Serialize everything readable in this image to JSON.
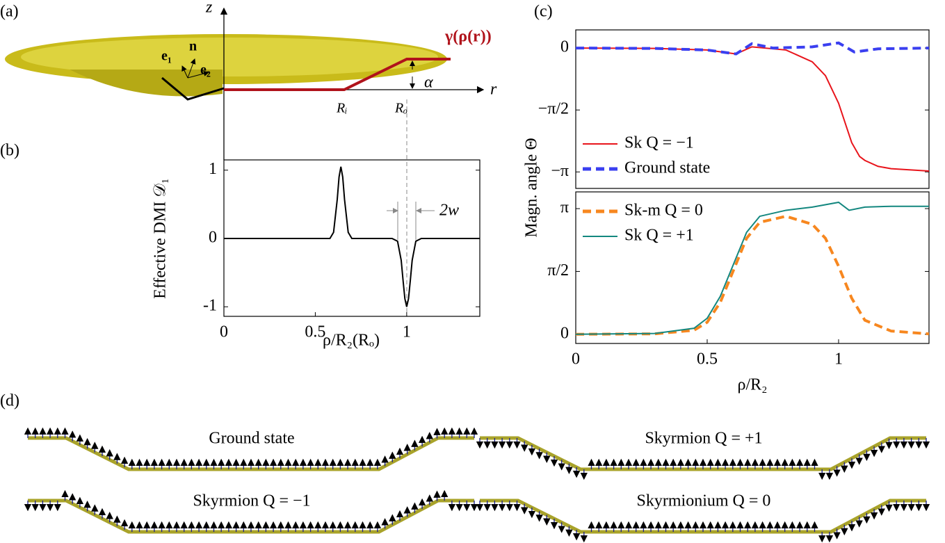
{
  "panel_labels": [
    "(a)",
    "(b)",
    "(c)",
    "(d)"
  ],
  "diagram": {
    "z_axis": "z",
    "r_axis": "r",
    "curve": "γ(ρ(r))",
    "inner_radius": "Rᵢ",
    "outer_radius": "Rₒ",
    "angle": "α",
    "e1": "e₁",
    "n": "n",
    "e2": "e₂"
  },
  "chart_data": [
    {
      "type": "line",
      "ylabel": "Effective DMI 𝒟₁",
      "xlabel": "ρ/R₂(Rₒ)",
      "annotation": "2w",
      "color": "#000000",
      "x": [
        0,
        0.55,
        0.58,
        0.6,
        0.62,
        0.63,
        0.64,
        0.65,
        0.66,
        0.68,
        0.7,
        0.92,
        0.95,
        0.97,
        0.98,
        0.99,
        1.0,
        1.01,
        1.02,
        1.03,
        1.05,
        1.08,
        1.4
      ],
      "values": [
        0,
        0,
        0,
        0.09,
        0.57,
        0.9,
        1.05,
        0.9,
        0.57,
        0.09,
        0,
        0,
        -0.04,
        -0.32,
        -0.61,
        -0.88,
        -1,
        -0.88,
        -0.61,
        -0.32,
        -0.04,
        0,
        0
      ],
      "xlim": [
        0,
        1.4
      ],
      "ylim": [
        -1.14,
        1.15
      ],
      "xticks": [
        0,
        0.5,
        1
      ],
      "yticks": [
        -1,
        0,
        1
      ]
    },
    {
      "type": "line",
      "ylabel": "Magn. angle Θ",
      "legend": "lower left",
      "series": [
        {
          "name": "Sk Q = −1",
          "color": "#e8141b",
          "dash": false,
          "x": [
            0,
            0.3,
            0.5,
            0.61,
            0.67,
            0.8,
            0.9,
            0.95,
            1.0,
            1.03,
            1.05,
            1.08,
            1.1,
            1.15,
            1.2,
            1.344
          ],
          "values": [
            0,
            -0.01,
            -0.05,
            -0.15,
            0.03,
            -0.05,
            -0.35,
            -0.7,
            -1.4,
            -2.0,
            -2.4,
            -2.75,
            -2.85,
            -3.0,
            -3.06,
            -3.12
          ]
        },
        {
          "name": "Ground state",
          "color": "#3a3ff0",
          "dash": true,
          "x": [
            0,
            0.3,
            0.5,
            0.61,
            0.67,
            0.75,
            0.9,
            1.0,
            1.06,
            1.15,
            1.344
          ],
          "values": [
            0,
            -0.01,
            -0.05,
            -0.15,
            0.11,
            0,
            0.03,
            0.13,
            -0.1,
            -0.02,
            0
          ]
        }
      ],
      "xlim": [
        0,
        1.344
      ],
      "ylim": [
        -3.56,
        0.46
      ],
      "yticks": [
        {
          "value": -3.1416,
          "label": "−π"
        },
        {
          "value": -1.5708,
          "label": "−π/2"
        },
        0
      ]
    },
    {
      "type": "line",
      "xlabel": "ρ/R₂",
      "legend": "upper left",
      "series": [
        {
          "name": "Sk-m Q = 0",
          "color": "#f7871f",
          "dash": true,
          "x": [
            0,
            0.3,
            0.45,
            0.5,
            0.55,
            0.6,
            0.65,
            0.7,
            0.8,
            0.9,
            0.95,
            1.0,
            1.05,
            1.1,
            1.2,
            1.344
          ],
          "values": [
            0,
            0.01,
            0.1,
            0.3,
            0.8,
            1.6,
            2.4,
            2.8,
            2.95,
            2.75,
            2.4,
            1.7,
            0.9,
            0.35,
            0.08,
            0.01
          ]
        },
        {
          "name": "Sk Q = +1",
          "color": "#13877f",
          "dash": false,
          "x": [
            0,
            0.3,
            0.45,
            0.5,
            0.55,
            0.6,
            0.65,
            0.7,
            0.8,
            0.9,
            1.0,
            1.04,
            1.1,
            1.2,
            1.344
          ],
          "values": [
            0,
            0.02,
            0.15,
            0.4,
            0.95,
            1.75,
            2.55,
            2.95,
            3.1,
            3.18,
            3.3,
            3.1,
            3.18,
            3.2,
            3.2
          ]
        }
      ],
      "xlim": [
        0,
        1.344
      ],
      "ylim": [
        -0.23,
        3.56
      ],
      "xticks": [
        0,
        0.5,
        1
      ],
      "yticks": [
        0,
        {
          "value": 1.5708,
          "label": "π/2"
        },
        {
          "value": 3.1416,
          "label": "π"
        }
      ]
    }
  ],
  "profiles": {
    "titles": [
      "Ground state",
      "Skyrmion Q = +1",
      "Skyrmion Q = −1",
      "Skyrmionium Q = 0"
    ]
  }
}
